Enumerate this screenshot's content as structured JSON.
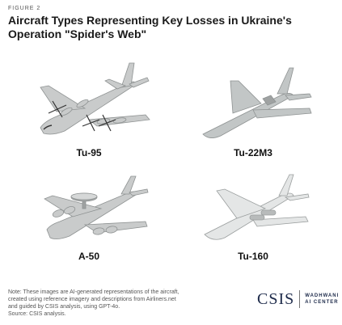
{
  "figure_label": "FIGURE 2",
  "title": "Aircraft Types Representing Key Losses in Ukraine's Operation \"Spider's Web\"",
  "aircraft": [
    {
      "name": "Tu-95"
    },
    {
      "name": "Tu-22M3"
    },
    {
      "name": "A-50"
    },
    {
      "name": "Tu-160"
    }
  ],
  "note": {
    "line1": "Note: These images are AI-generated representations of the aircraft,",
    "line2": "created using reference imagery and descriptions from Airliners.net",
    "line3": "and guided by CSIS analysis, using GPT-4o.",
    "source": "Source: CSIS analysis."
  },
  "logo": {
    "brand": "CSIS",
    "center_line1": "WADHWANI",
    "center_line2": "AI CENTER"
  },
  "colors": {
    "aircraft_body": "#c9cbcb",
    "aircraft_shade": "#9fa2a2",
    "logo_navy": "#1d2a4a"
  }
}
